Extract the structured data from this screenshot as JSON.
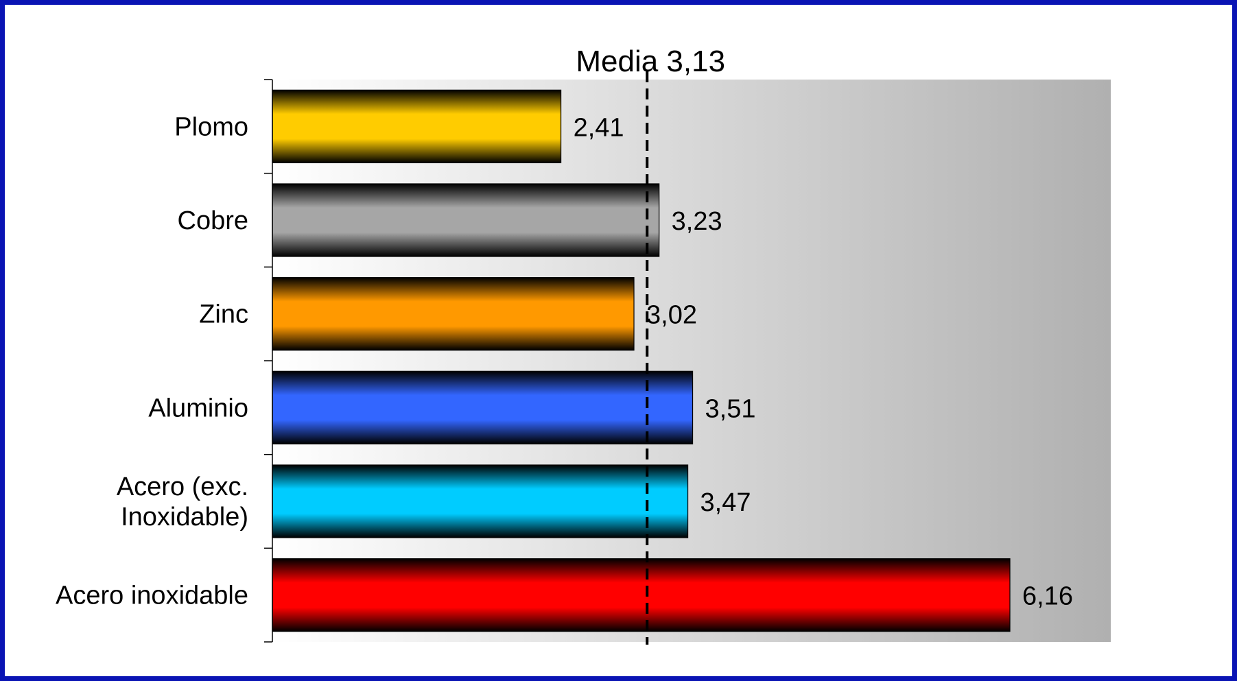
{
  "chart_data": {
    "type": "bar",
    "orientation": "horizontal",
    "categories": [
      "Plomo",
      "Cobre",
      "Zinc",
      "Aluminio",
      "Acero (exc. Inoxidable)",
      "Acero inoxidable"
    ],
    "category_lines": [
      [
        "Plomo"
      ],
      [
        "Cobre"
      ],
      [
        "Zinc"
      ],
      [
        "Aluminio"
      ],
      [
        "Acero (exc.",
        "Inoxidable)"
      ],
      [
        "Acero inoxidable"
      ]
    ],
    "values": [
      2.41,
      3.23,
      3.02,
      3.51,
      3.47,
      6.16
    ],
    "value_labels": [
      "2,41",
      "3,23",
      "3,02",
      "3,51",
      "3,47",
      "6,16"
    ],
    "bar_colors": [
      "#FFCC00",
      "#A6A6A6",
      "#FF9900",
      "#3366FF",
      "#00CCFF",
      "#FF0000"
    ],
    "mean": {
      "value": 3.13,
      "label": "Media 3,13"
    },
    "xlim": [
      0,
      7
    ],
    "grid": false,
    "legend": "none",
    "background": "white-to-gray gradient",
    "frame_color": "#0A14B4"
  }
}
